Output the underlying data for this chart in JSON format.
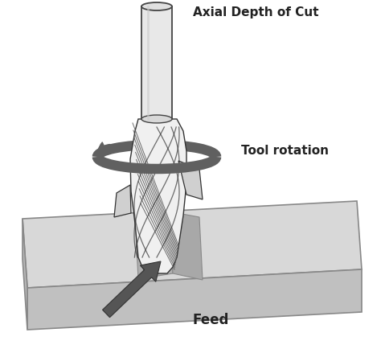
{
  "bg_color": "#ffffff",
  "label_axial": "Axial Depth of Cut",
  "label_rotation": "Tool rotation",
  "label_feed": "Feed",
  "label_fontsize": 11,
  "label_fontweight": "bold",
  "tool_outline": "#444444",
  "arrow_color": "#555555",
  "ring_color": "#606060",
  "workpiece_top_color": "#d8d8d8",
  "workpiece_front_color": "#c0c0c0",
  "workpiece_edge": "#888888",
  "cutter_face_color": "#f0f0f0",
  "cutter_edge_color": "#333333",
  "flute_color": "#555555",
  "shank_color": "#e8e8e8",
  "slot_color": "#b8b8b8",
  "feed_arrow_color": "#555555"
}
